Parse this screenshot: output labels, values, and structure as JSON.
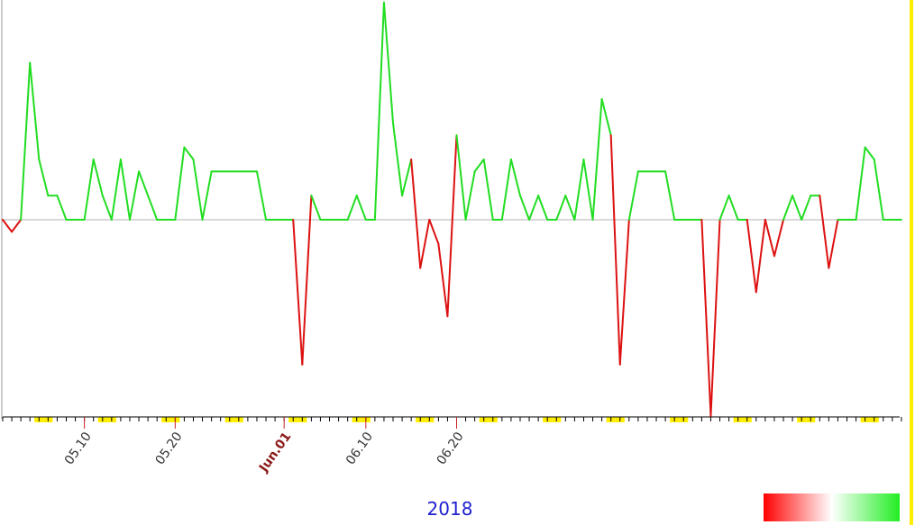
{
  "chart_data": {
    "type": "line",
    "title": "",
    "xlabel": "2018",
    "ylabel": "",
    "x_start": "2018-05-01",
    "values": [
      0,
      -0.4,
      0,
      5.2,
      2,
      0.8,
      0.8,
      0,
      0,
      0,
      2,
      0.8,
      0,
      2,
      0,
      1.6,
      0.8,
      0,
      0,
      0,
      2.4,
      2,
      0,
      1.6,
      1.6,
      1.6,
      1.6,
      1.6,
      1.6,
      0,
      0,
      0,
      0,
      -4.8,
      0.8,
      0,
      0,
      0,
      0,
      0.8,
      0,
      0,
      7.2,
      3.2,
      0.8,
      2,
      -1.6,
      0,
      -0.8,
      -3.2,
      2.8,
      0,
      1.6,
      2,
      0,
      0,
      2,
      0.8,
      0,
      0.8,
      0,
      0,
      0.8,
      0,
      2,
      0,
      4,
      2.8,
      -4.8,
      0,
      1.6,
      1.6,
      1.6,
      1.6,
      0,
      0,
      0,
      0,
      -6.5,
      0,
      0.8,
      0,
      0,
      -2.4,
      0,
      -1.2,
      0,
      0.8,
      0,
      0.8,
      0.8,
      -1.6,
      0,
      0,
      0,
      2.4,
      2,
      0,
      0,
      0
    ],
    "series_colors": {
      "positive": "#22dd22",
      "negative": "#dd1111",
      "zero_line": "#b0b0b0"
    },
    "x_tick_labels": [
      {
        "label": "05.10",
        "date": "2018-05-10"
      },
      {
        "label": "05.20",
        "date": "2018-05-20"
      },
      {
        "label": "Jun.01",
        "date": "2018-06-01",
        "month": true
      },
      {
        "label": "06.10",
        "date": "2018-06-10"
      },
      {
        "label": "06.20",
        "date": "2018-06-20"
      }
    ],
    "weekend_color": "#ffee00",
    "grid": false
  },
  "legend": {
    "colors": [
      "#ff0000",
      "#ffffff",
      "#22ee22"
    ]
  },
  "accent_color": "#ffee00"
}
